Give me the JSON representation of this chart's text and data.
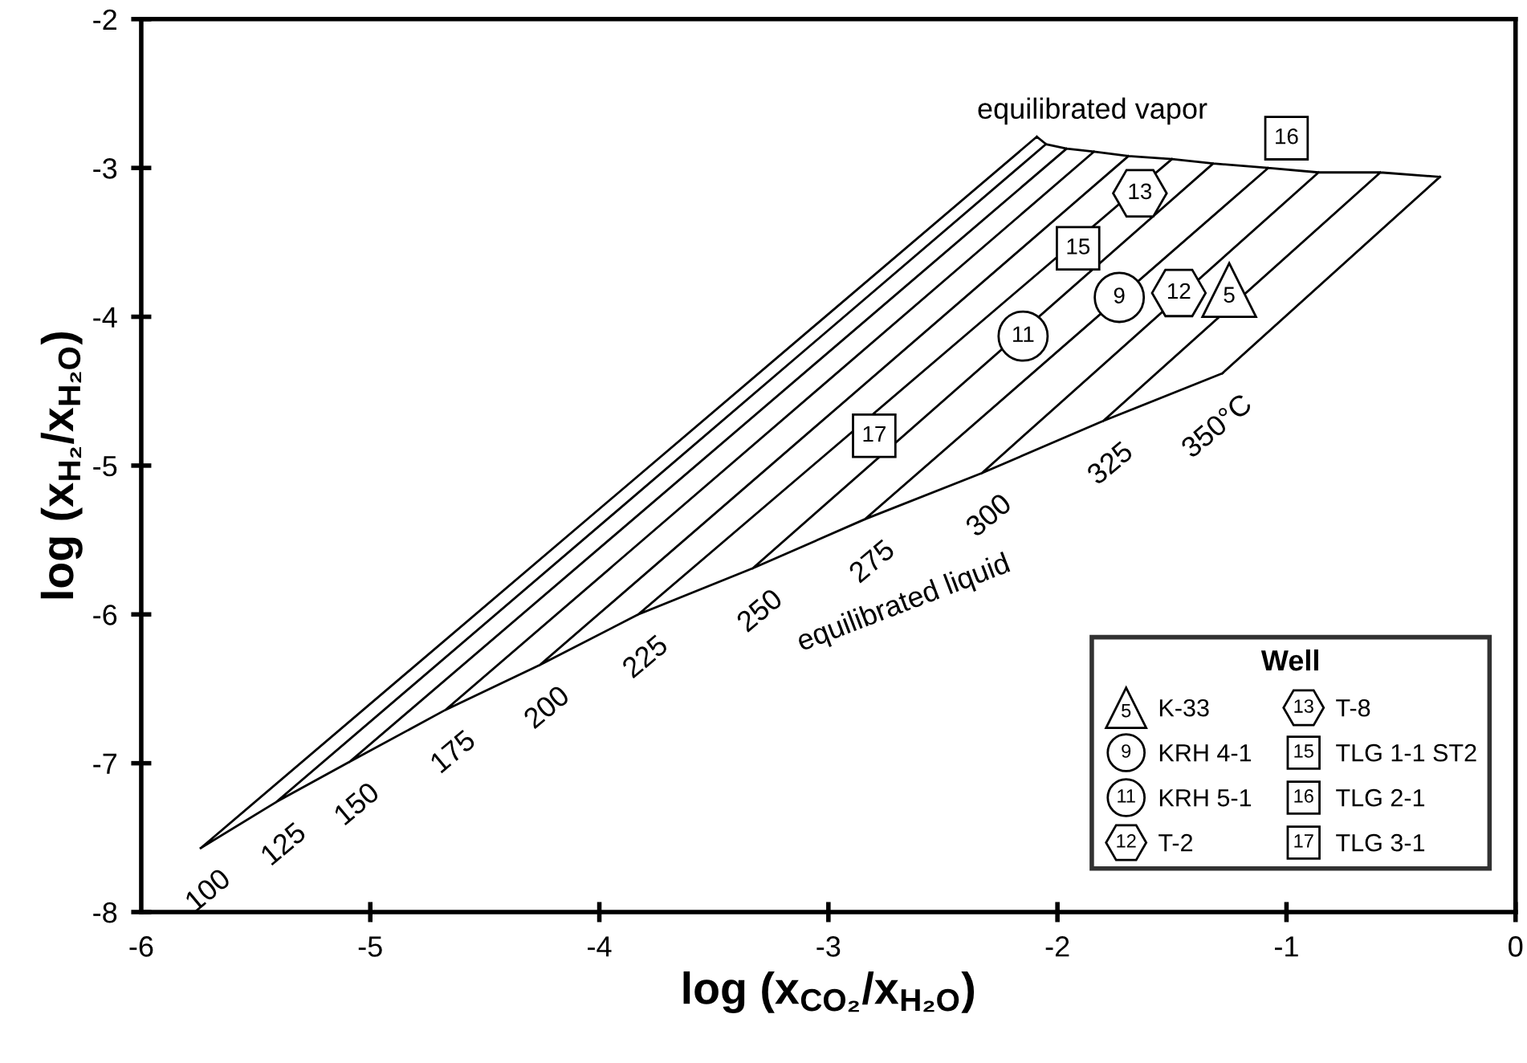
{
  "chart_data": {
    "type": "line",
    "xlabel": "log (x$_{CO₂}$/x$_{H₂O}$)",
    "ylabel": "log (x$_{H₂}$/x$_{H₂O}$)",
    "legend_title": "Well",
    "legend": "bottom right",
    "xlim": [
      -6,
      0
    ],
    "xticks": [
      -6,
      -5,
      -4,
      -3,
      -2,
      -1,
      0
    ],
    "ylim": [
      -8,
      -2
    ],
    "yticks": [
      -8,
      -7,
      -6,
      -5,
      -4,
      -3,
      -2
    ],
    "annotations": [
      "equilibrated liquid",
      "equilibrated vapor",
      {
        "text": "100",
        "x": -5.74,
        "y": -7.57
      },
      {
        "text": "125",
        "x": -5.41,
        "y": -7.26
      },
      {
        "text": "150",
        "x": -5.09,
        "y": -6.99
      },
      {
        "text": "175",
        "x": -4.67,
        "y": -6.64
      },
      {
        "text": "200",
        "x": -4.26,
        "y": -6.34
      },
      {
        "text": "225",
        "x": -3.83,
        "y": -6.0
      },
      {
        "text": "250",
        "x": -3.33,
        "y": -5.69
      },
      {
        "text": "275",
        "x": -2.84,
        "y": -5.36
      },
      {
        "text": "300",
        "x": -2.33,
        "y": -5.05
      },
      {
        "text": "325",
        "x": -1.8,
        "y": -4.7
      },
      {
        "text": "350°C",
        "x": -1.28,
        "y": -4.38
      },
      {
        "text": "5",
        "x": -1.25,
        "y": -3.82
      },
      {
        "text": "9",
        "x": -1.73,
        "y": -3.87
      },
      {
        "text": "11",
        "x": -2.15,
        "y": -4.13
      },
      {
        "text": "12",
        "x": -1.47,
        "y": -3.84
      },
      {
        "text": "13",
        "x": -1.64,
        "y": -3.17
      },
      {
        "text": "15",
        "x": -1.91,
        "y": -3.54
      },
      {
        "text": "16",
        "x": -1.0,
        "y": -2.8
      },
      {
        "text": "17",
        "x": -2.8,
        "y": -4.8
      }
    ],
    "series": [
      {
        "color": "#000000",
        "x": [
          -5.74,
          -5.41,
          -5.09,
          -4.67,
          -4.26,
          -3.83,
          -3.33,
          -2.84,
          -2.33,
          -1.8,
          -1.28,
          null,
          -2.09,
          -2.05,
          -1.96,
          -1.84,
          -1.69,
          -1.5,
          -1.32,
          -1.08,
          -0.86,
          -0.59,
          -0.33,
          null,
          -5.74,
          -2.09,
          null,
          -5.41,
          -2.05,
          null,
          -5.09,
          -1.96,
          null,
          -4.67,
          -1.84,
          null,
          -4.26,
          -1.69,
          null,
          -3.83,
          -1.5,
          null,
          -3.33,
          -1.32,
          null,
          -2.84,
          -1.08,
          null,
          -2.33,
          -0.86,
          null,
          -1.8,
          -0.59,
          null,
          -1.28,
          -0.33
        ],
        "values": [
          -7.57,
          -7.26,
          -6.99,
          -6.64,
          -6.34,
          -6.0,
          -5.69,
          -5.36,
          -5.05,
          -4.7,
          -4.38,
          null,
          -2.79,
          -2.84,
          -2.87,
          -2.89,
          -2.92,
          -2.94,
          -2.97,
          -3.0,
          -3.03,
          -3.03,
          -3.06,
          null,
          -7.57,
          -2.79,
          null,
          -7.26,
          -2.84,
          null,
          -6.99,
          -2.87,
          null,
          -6.64,
          -2.89,
          null,
          -6.34,
          -2.92,
          null,
          -6.0,
          -2.94,
          null,
          -5.69,
          -2.97,
          null,
          -5.36,
          -3.0,
          null,
          -5.05,
          -3.03,
          null,
          -4.7,
          -3.03,
          null,
          -4.38,
          -3.06
        ]
      },
      {
        "type": "scatter",
        "name": "K-33",
        "color": "#000000",
        "marker": "triangle",
        "x": [
          -1.25
        ],
        "values": [
          -3.82
        ]
      },
      {
        "type": "scatter",
        "name": "KRH 4-1",
        "color": "#000000",
        "marker": "circle",
        "x": [
          -1.73
        ],
        "values": [
          -3.87
        ]
      },
      {
        "type": "scatter",
        "name": "KRH 5-1",
        "color": "#000000",
        "marker": "circle",
        "x": [
          -2.15
        ],
        "values": [
          -4.13
        ]
      },
      {
        "type": "scatter",
        "name": "T-2",
        "color": "#000000",
        "x": [
          -1.47
        ],
        "values": [
          -3.84
        ]
      },
      {
        "type": "scatter",
        "name": "T-8",
        "color": "#000000",
        "x": [
          -1.64
        ],
        "values": [
          -3.17
        ]
      },
      {
        "type": "scatter",
        "name": "TLG 1-1 ST2",
        "color": "#000000",
        "marker": "square",
        "x": [
          -1.91
        ],
        "values": [
          -3.54
        ]
      },
      {
        "type": "scatter",
        "name": "TLG 2-1",
        "color": "#000000",
        "marker": "square",
        "x": [
          -1.0
        ],
        "values": [
          -2.8
        ]
      },
      {
        "type": "scatter",
        "name": "TLG 3-1",
        "color": "#000000",
        "marker": "square",
        "x": [
          -2.8
        ],
        "values": [
          -4.8
        ]
      }
    ]
  }
}
